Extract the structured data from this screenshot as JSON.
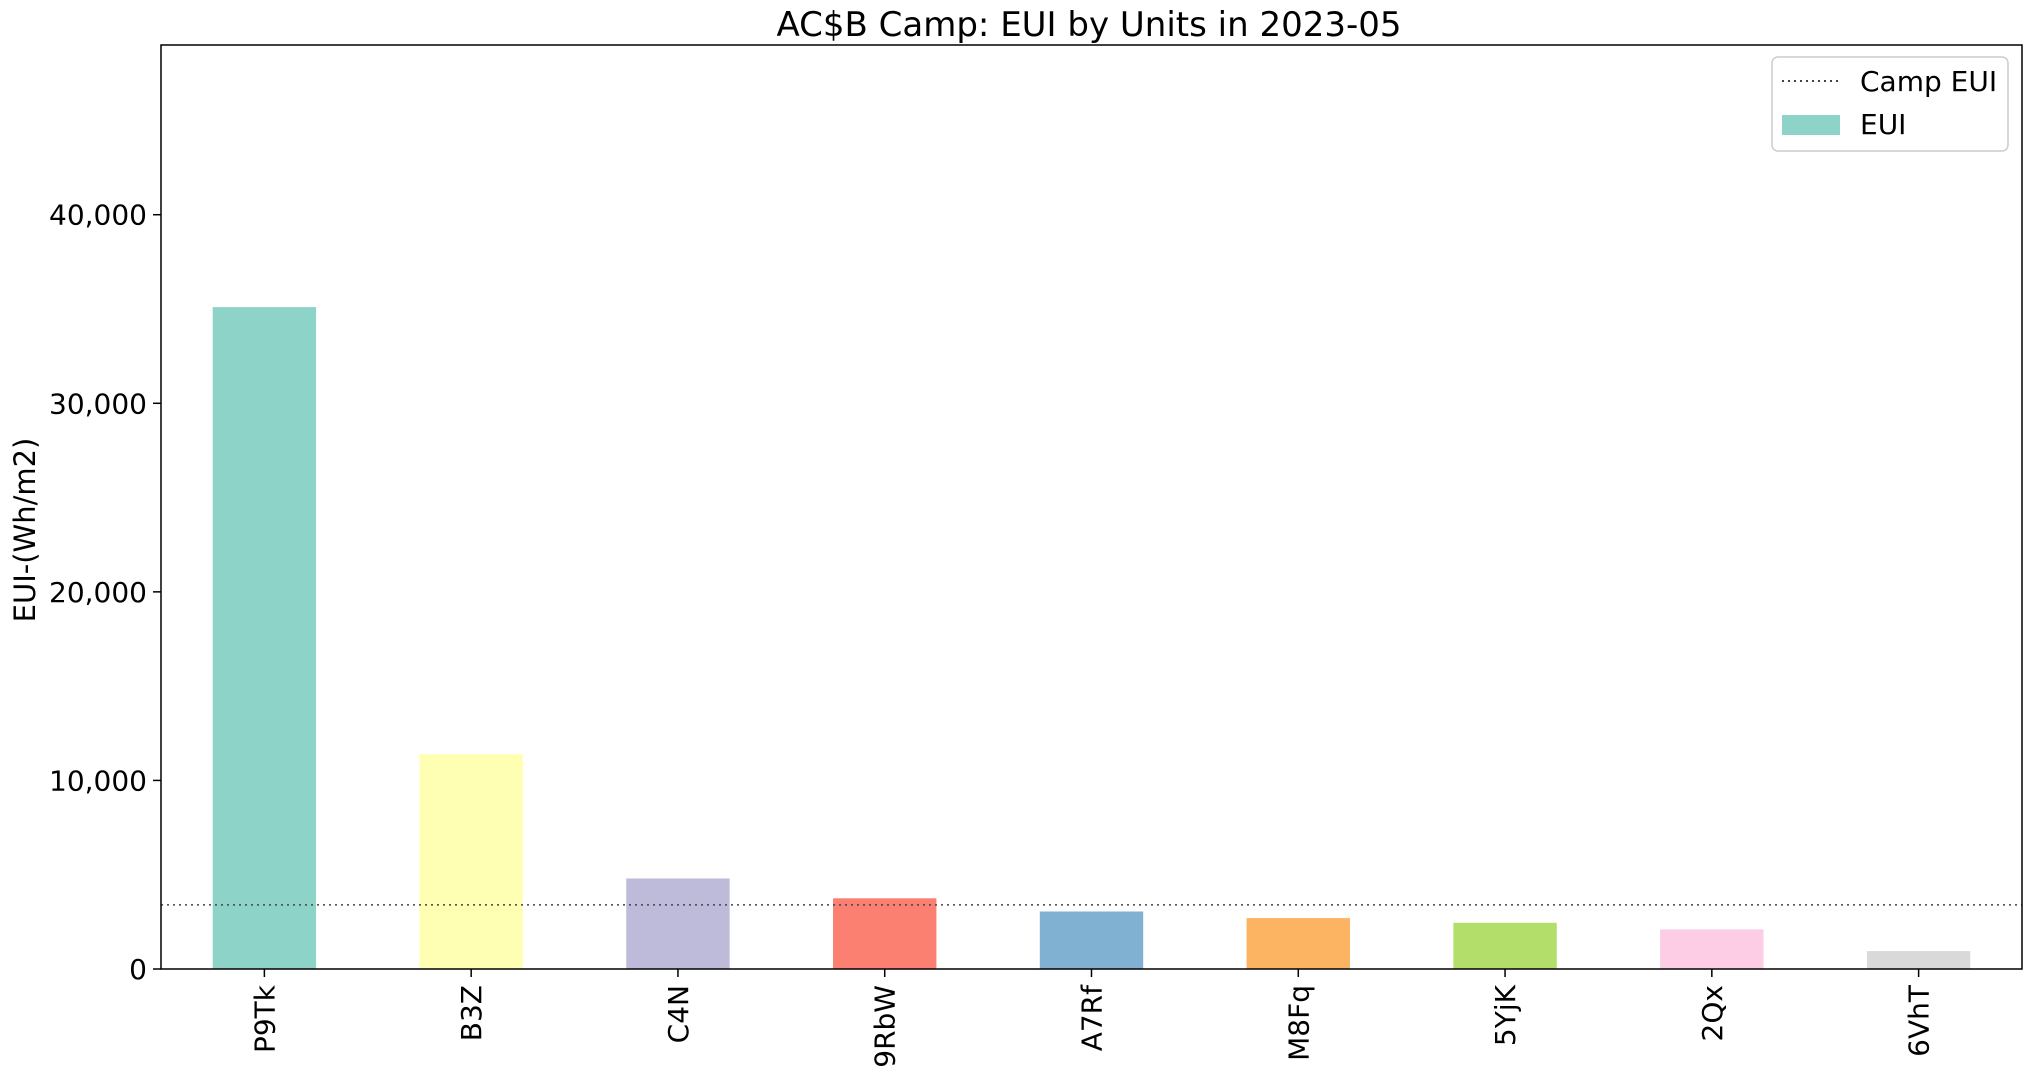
{
  "chart_data": {
    "type": "bar",
    "title": "AC$B Camp: EUI by Units in 2023-05",
    "xlabel": "",
    "ylabel": "EUI-(Wh/m2)",
    "categories": [
      "P9Tk",
      "B3Z",
      "C4N",
      "9RbW",
      "A7Rf",
      "M8Fq",
      "5YjK",
      "2Qx",
      "6VhT"
    ],
    "series": [
      {
        "name": "EUI",
        "values": [
          35100,
          11400,
          4800,
          3750,
          3050,
          2700,
          2450,
          2100,
          950
        ],
        "colors": [
          "#8dd3c7",
          "#ffffb3",
          "#bebada",
          "#fb8072",
          "#80b1d3",
          "#fdb462",
          "#b3de69",
          "#fccde5",
          "#d9d9d9"
        ]
      }
    ],
    "reference_line": {
      "name": "Camp EUI",
      "value": 3400,
      "style": "dotted",
      "color": "#444444"
    },
    "ylim": [
      0,
      49000
    ],
    "yticks": [
      0,
      10000,
      20000,
      30000,
      40000
    ],
    "ytick_labels": [
      "0",
      "10,000",
      "20,000",
      "30,000",
      "40,000"
    ],
    "grid": false,
    "legend": {
      "placement": "top-right",
      "entries": [
        {
          "label": "Camp EUI",
          "kind": "dotted-line"
        },
        {
          "label": "EUI",
          "kind": "patch",
          "color": "#8dd3c7"
        }
      ]
    }
  }
}
